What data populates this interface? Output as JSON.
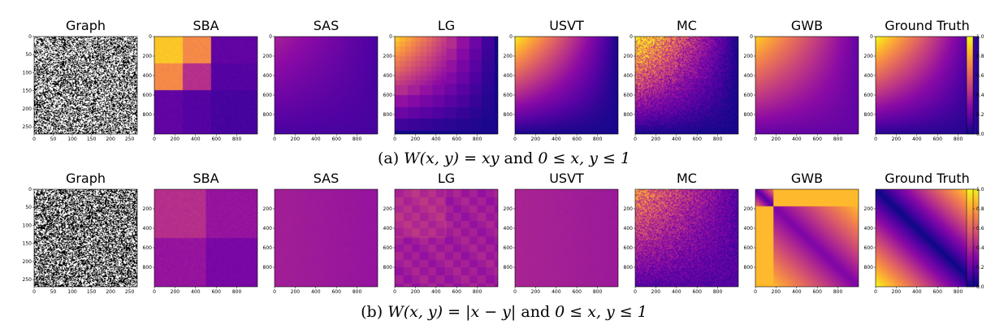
{
  "colormap": [
    "#0d0887",
    "#5302a3",
    "#8b0aa5",
    "#b83289",
    "#db5c68",
    "#f48849",
    "#febd2a",
    "#f0f921"
  ],
  "chart_data": [
    {
      "type": "heatmap",
      "row_caption": {
        "label": "(a)",
        "math": "W(x, y) = xy",
        "text_and": "and",
        "math2": "0 ≤ x, y ≤ 1"
      },
      "panels": [
        {
          "title": "Graph",
          "kind": "adjacency",
          "density": 0.45,
          "xticks": [
            "0",
            "50",
            "100",
            "150",
            "200",
            "250"
          ],
          "yticks": [
            "0",
            "50",
            "100",
            "150",
            "200",
            "250"
          ]
        },
        {
          "title": "SBA",
          "kind": "blocks",
          "blocks": [
            0,
            0.27,
            0.55,
            1
          ],
          "block_values": [
            [
              0.88,
              0.72,
              0.18
            ],
            [
              0.72,
              0.42,
              0.15
            ],
            [
              0.18,
              0.15,
              0.12
            ]
          ],
          "xticks": [
            "0",
            "200",
            "400",
            "600",
            "800"
          ],
          "yticks": [
            "0",
            "200",
            "400",
            "600",
            "800"
          ]
        },
        {
          "title": "SAS",
          "kind": "smooth",
          "a": 0.25,
          "b": 0.12,
          "xticks": [
            "0",
            "200",
            "400",
            "600",
            "800"
          ],
          "yticks": [
            "0",
            "200",
            "400",
            "600",
            "800"
          ]
        },
        {
          "title": "LG",
          "kind": "pixelated",
          "a": 0.9,
          "b": 0.02,
          "xticks": [
            "0",
            "200",
            "400",
            "600",
            "800"
          ],
          "yticks": [
            "0",
            "200",
            "400",
            "600",
            "800"
          ]
        },
        {
          "title": "USVT",
          "kind": "smooth",
          "a": 0.95,
          "b": 0.02,
          "xticks": [
            "0",
            "200",
            "400",
            "600",
            "800"
          ],
          "yticks": [
            "0",
            "200",
            "400",
            "600",
            "800"
          ]
        },
        {
          "title": "MC",
          "kind": "noisy",
          "a": 0.95,
          "b": 0.02,
          "xticks": [
            "0",
            "200",
            "400",
            "600",
            "800"
          ],
          "yticks": [
            "0",
            "200",
            "400",
            "600",
            "800"
          ]
        },
        {
          "title": "GWB",
          "kind": "smooth",
          "a": 0.72,
          "b": 0.18,
          "xticks": [
            "0",
            "200",
            "400",
            "600",
            "800"
          ],
          "yticks": [
            "0",
            "200",
            "400",
            "600",
            "800"
          ]
        },
        {
          "title": "Ground Truth",
          "kind": "smooth",
          "a": 0.95,
          "b": 0.05,
          "xticks": [
            "0",
            "200",
            "400",
            "600",
            "800"
          ],
          "yticks": [
            "0",
            "200",
            "400",
            "600",
            "800"
          ]
        }
      ],
      "colorbar": {
        "range": [
          0.0,
          1.0
        ],
        "ticks": [
          "0.0",
          "0.2",
          "0.4",
          "0.6",
          "0.8",
          "1.0"
        ]
      }
    },
    {
      "type": "heatmap",
      "row_caption": {
        "label": "(b)",
        "math": "W(x, y) = |x − y|",
        "text_and": "and",
        "math2": "0 ≤ x, y ≤ 1"
      },
      "panels": [
        {
          "title": "Graph",
          "kind": "adjacency",
          "density": 0.5,
          "xticks": [
            "0",
            "50",
            "100",
            "150",
            "200",
            "250"
          ],
          "yticks": [
            "0",
            "50",
            "100",
            "150",
            "200",
            "250"
          ]
        },
        {
          "title": "SBA",
          "kind": "blocks",
          "blocks": [
            0,
            0.5,
            1
          ],
          "block_values": [
            [
              0.42,
              0.32
            ],
            [
              0.32,
              0.24
            ]
          ],
          "xticks": [
            "0",
            "200",
            "400",
            "600",
            "800"
          ],
          "yticks": [
            "200",
            "400",
            "600",
            "800"
          ]
        },
        {
          "title": "SAS",
          "kind": "constant",
          "value": 0.32,
          "xticks": [
            "0",
            "200",
            "400",
            "600",
            "800"
          ],
          "yticks": [
            "200",
            "400",
            "600",
            "800"
          ]
        },
        {
          "title": "LG",
          "kind": "pixelated_const",
          "value": 0.35,
          "xticks": [
            "0",
            "200",
            "400",
            "600",
            "800"
          ],
          "yticks": [
            "200",
            "400",
            "600",
            "800"
          ]
        },
        {
          "title": "USVT",
          "kind": "constant",
          "value": 0.34,
          "xticks": [
            "0",
            "200",
            "400",
            "600",
            "800"
          ],
          "yticks": [
            "200",
            "400",
            "600",
            "800"
          ]
        },
        {
          "title": "MC",
          "kind": "noisy",
          "a": 0.55,
          "b": 0.15,
          "xticks": [
            "0",
            "200",
            "400",
            "600",
            "800"
          ],
          "yticks": [
            "200",
            "400",
            "600",
            "800"
          ]
        },
        {
          "title": "GWB",
          "kind": "gwb",
          "xticks": [
            "0",
            "200",
            "400",
            "600",
            "800"
          ],
          "yticks": [
            "200",
            "400",
            "600",
            "800"
          ]
        },
        {
          "title": "Ground Truth",
          "kind": "absdiff",
          "xticks": [
            "0",
            "200",
            "400",
            "600",
            "800"
          ],
          "yticks": [
            "200",
            "400",
            "600",
            "800"
          ]
        }
      ],
      "colorbar": {
        "range": [
          0.0,
          1.0
        ],
        "ticks": [
          "0.0",
          "0.2",
          "0.4",
          "0.6",
          "0.8",
          "1.0"
        ]
      }
    }
  ]
}
